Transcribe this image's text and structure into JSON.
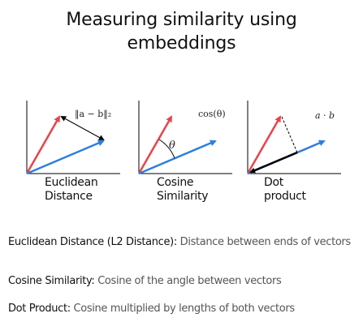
{
  "title_line1": "Measuring similarity using",
  "title_line2": "embeddings",
  "panels": [
    {
      "label_line1": "Euclidean",
      "label_line2": "Distance",
      "formula": "‖a − b‖₂"
    },
    {
      "label_line1": "Cosine",
      "label_line2": "Similarity",
      "formula": "cos(θ)",
      "angle_symbol": "θ"
    },
    {
      "label_line1": "Dot",
      "label_line2": "product",
      "formula": "a · b"
    }
  ],
  "definitions": [
    {
      "term": "Euclidean Distance (L2 Distance):",
      "desc": "Distance between ends of vectors"
    },
    {
      "term": "Cosine Similarity:",
      "desc": "Cosine of the angle between vectors"
    },
    {
      "term": "Dot Product:",
      "desc": "Cosine multiplied by lengths of both vectors"
    }
  ],
  "colors": {
    "red_vector": "#e8434b",
    "blue_vector": "#2f7fdb",
    "axis": "#000000"
  }
}
